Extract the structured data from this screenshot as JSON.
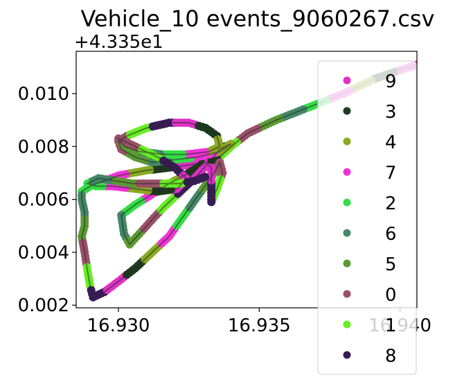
{
  "chart_data": {
    "type": "scatter",
    "title": "Vehicle_10 events_9060267.csv",
    "xlabel": "",
    "ylabel": "",
    "y_offset_text": "+4.335e1",
    "xlim": [
      16.9285,
      16.9406
    ],
    "ylim": [
      0.0019,
      0.0116
    ],
    "x_ticks": [
      {
        "value": 16.93,
        "label": "16.930"
      },
      {
        "value": 16.935,
        "label": "16.935"
      },
      {
        "value": 16.94,
        "label": "16.940"
      }
    ],
    "y_ticks": [
      {
        "value": 0.002,
        "label": "0.002"
      },
      {
        "value": 0.004,
        "label": "0.004"
      },
      {
        "value": 0.006,
        "label": "0.006"
      },
      {
        "value": 0.008,
        "label": "0.008"
      },
      {
        "value": 0.01,
        "label": "0.010"
      }
    ],
    "grid": false,
    "legend_position": "right",
    "series": [
      {
        "name": "9",
        "color": "#e030c8"
      },
      {
        "name": "3",
        "color": "#1c3a1c"
      },
      {
        "name": "4",
        "color": "#8aaa22"
      },
      {
        "name": "7",
        "color": "#f033d6"
      },
      {
        "name": "2",
        "color": "#33dd44"
      },
      {
        "name": "6",
        "color": "#448866"
      },
      {
        "name": "5",
        "color": "#5a9a33"
      },
      {
        "name": "0",
        "color": "#9a5068"
      },
      {
        "name": "1",
        "color": "#66ee22"
      },
      {
        "name": "8",
        "color": "#3a1a5a"
      }
    ],
    "track_points": [
      [
        16.9406,
        0.0111
      ],
      [
        16.9392,
        0.0106
      ],
      [
        16.938,
        0.01
      ],
      [
        16.9368,
        0.0095
      ],
      [
        16.9356,
        0.009
      ],
      [
        16.9346,
        0.0085
      ],
      [
        16.934,
        0.008
      ],
      [
        16.9336,
        0.0076
      ],
      [
        16.9332,
        0.0074
      ],
      [
        16.9325,
        0.0073
      ],
      [
        16.9318,
        0.0072
      ],
      [
        16.931,
        0.0071
      ],
      [
        16.9305,
        0.007
      ],
      [
        16.93,
        0.0069
      ],
      [
        16.9295,
        0.0067
      ],
      [
        16.929,
        0.0065
      ],
      [
        16.9287,
        0.0063
      ],
      [
        16.9287,
        0.006
      ],
      [
        16.9288,
        0.0055
      ],
      [
        16.9288,
        0.005
      ],
      [
        16.9287,
        0.0046
      ],
      [
        16.9288,
        0.004
      ],
      [
        16.9289,
        0.0033
      ],
      [
        16.929,
        0.0027
      ],
      [
        16.9291,
        0.0023
      ],
      [
        16.9295,
        0.0025
      ],
      [
        16.93,
        0.0029
      ],
      [
        16.9306,
        0.0034
      ],
      [
        16.9312,
        0.004
      ],
      [
        16.9318,
        0.0046
      ],
      [
        16.9322,
        0.0052
      ],
      [
        16.9326,
        0.0058
      ],
      [
        16.933,
        0.0064
      ],
      [
        16.9334,
        0.007
      ],
      [
        16.9336,
        0.0074
      ],
      [
        16.9337,
        0.007
      ],
      [
        16.9335,
        0.0064
      ],
      [
        16.9333,
        0.0059
      ],
      [
        16.9333,
        0.006
      ],
      [
        16.9333,
        0.0066
      ],
      [
        16.9333,
        0.0072
      ],
      [
        16.9331,
        0.0074
      ],
      [
        16.9325,
        0.007
      ],
      [
        16.9318,
        0.0066
      ],
      [
        16.9312,
        0.0062
      ],
      [
        16.9306,
        0.0058
      ],
      [
        16.9301,
        0.0054
      ],
      [
        16.9302,
        0.0047
      ],
      [
        16.9304,
        0.0043
      ],
      [
        16.931,
        0.005
      ],
      [
        16.9316,
        0.0057
      ],
      [
        16.9322,
        0.0063
      ],
      [
        16.9328,
        0.0069
      ],
      [
        16.9333,
        0.0075
      ],
      [
        16.9336,
        0.0079
      ],
      [
        16.934,
        0.0081
      ],
      [
        16.9336,
        0.0078
      ],
      [
        16.9328,
        0.0076
      ],
      [
        16.932,
        0.0075
      ],
      [
        16.9312,
        0.0074
      ],
      [
        16.9306,
        0.0076
      ],
      [
        16.9301,
        0.0079
      ],
      [
        16.93,
        0.0082
      ],
      [
        16.9303,
        0.0084
      ],
      [
        16.931,
        0.0087
      ],
      [
        16.9318,
        0.0089
      ],
      [
        16.9325,
        0.0089
      ],
      [
        16.9331,
        0.0087
      ],
      [
        16.9335,
        0.0084
      ],
      [
        16.9336,
        0.008
      ],
      [
        16.9332,
        0.0078
      ],
      [
        16.9324,
        0.0077
      ],
      [
        16.9316,
        0.0077
      ],
      [
        16.9308,
        0.0078
      ],
      [
        16.9302,
        0.008
      ],
      [
        16.93,
        0.0083
      ],
      [
        16.9306,
        0.008
      ],
      [
        16.9314,
        0.0076
      ],
      [
        16.932,
        0.0072
      ],
      [
        16.9324,
        0.0068
      ],
      [
        16.9321,
        0.0064
      ],
      [
        16.9314,
        0.0063
      ],
      [
        16.9306,
        0.0064
      ],
      [
        16.9298,
        0.0065
      ],
      [
        16.9292,
        0.0065
      ],
      [
        16.9289,
        0.0066
      ],
      [
        16.9293,
        0.0068
      ],
      [
        16.9299,
        0.0067
      ],
      [
        16.9305,
        0.0066
      ],
      [
        16.931,
        0.0066
      ],
      [
        16.9316,
        0.0066
      ],
      [
        16.9322,
        0.0066
      ],
      [
        16.9327,
        0.0067
      ],
      [
        16.9332,
        0.0069
      ]
    ]
  }
}
